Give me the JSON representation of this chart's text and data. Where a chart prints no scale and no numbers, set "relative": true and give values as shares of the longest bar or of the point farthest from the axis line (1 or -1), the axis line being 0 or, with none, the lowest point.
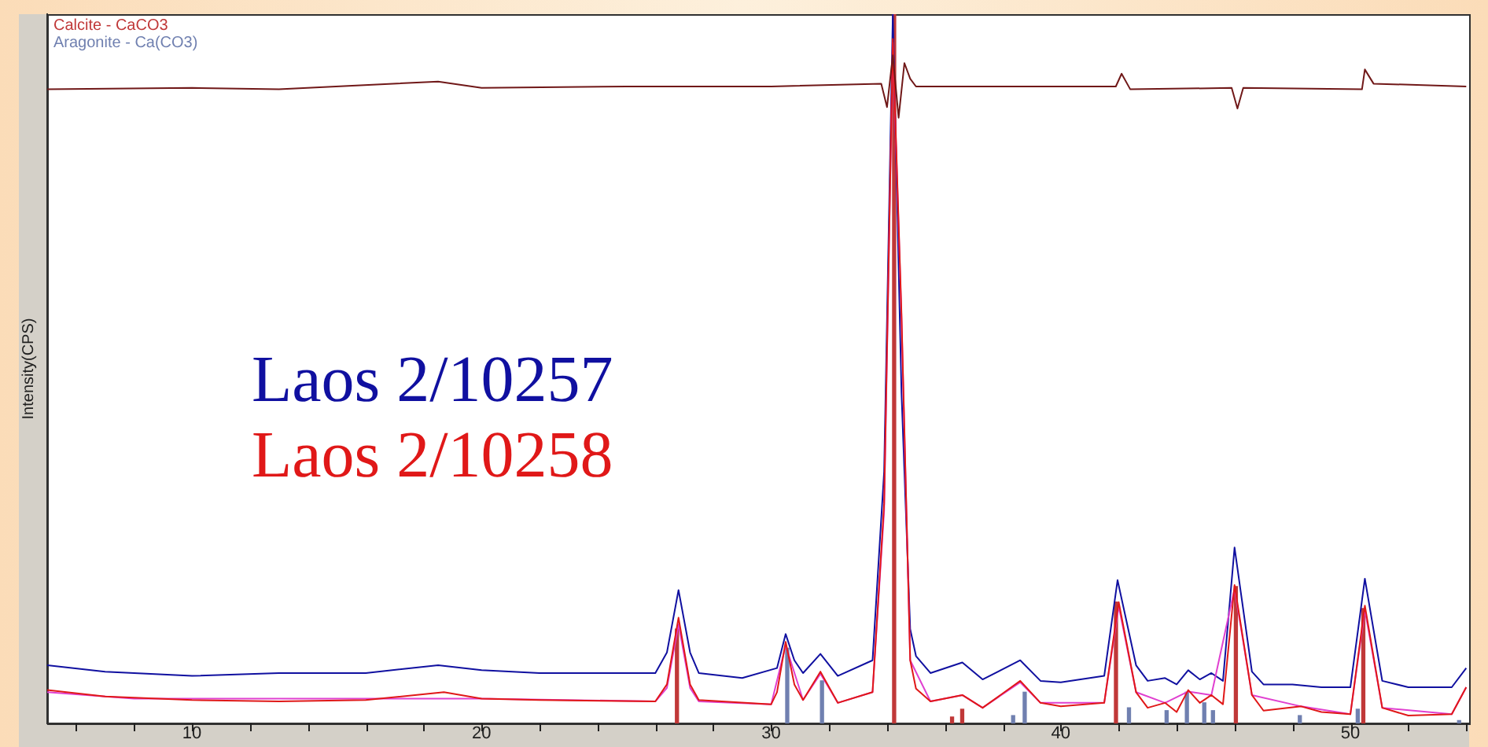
{
  "chart_data": {
    "type": "line",
    "relative": true,
    "ylabel": "Intensity(CPS)",
    "legend": "top left",
    "grid": false,
    "marker": "none",
    "line_style": "solid",
    "xlim": [
      5,
      54.1
    ],
    "xticks": [
      {
        "value": 6,
        "label": null
      },
      {
        "value": 8,
        "label": null
      },
      10,
      {
        "value": 12,
        "label": null
      },
      {
        "value": 14,
        "label": null
      },
      {
        "value": 16,
        "label": null
      },
      {
        "value": 18,
        "label": null
      },
      20,
      {
        "value": 22,
        "label": null
      },
      {
        "value": 24,
        "label": null
      },
      {
        "value": 26,
        "label": null
      },
      {
        "value": 28,
        "label": null
      },
      30,
      {
        "value": 32,
        "label": null
      },
      {
        "value": 34,
        "label": null
      },
      {
        "value": 36,
        "label": null
      },
      {
        "value": 38,
        "label": null
      },
      40,
      {
        "value": 42,
        "label": null
      },
      {
        "value": 44,
        "label": null
      },
      {
        "value": 46,
        "label": null
      },
      {
        "value": 48,
        "label": null
      },
      50,
      {
        "value": 52,
        "label": null
      },
      {
        "value": 54,
        "label": null
      }
    ],
    "series": [
      {
        "name": "Calcite - CaCO3",
        "type": "bar",
        "color": "#c03838",
        "x": [
          26.8,
          34.3,
          36.3,
          36.65,
          41.96,
          46.1,
          50.5
        ],
        "values": [
          0.133,
          1,
          0.009,
          0.02,
          0.171,
          0.193,
          0.162
        ]
      },
      {
        "name": "Aragonite - Ca(CO3)",
        "type": "bar",
        "color": "#7080b0",
        "x": [
          30.5,
          31.7,
          38.3,
          38.7,
          42.3,
          43.6,
          44.3,
          44.9,
          45.2,
          48.2,
          50.2,
          53.7
        ],
        "values": [
          0.106,
          0.06,
          0.011,
          0.044,
          0.022,
          0.018,
          0.044,
          0.029,
          0.018,
          0.011,
          0.02,
          0.004
        ]
      },
      {
        "name": "Laos 2/10257",
        "color": "#1010a0",
        "x": [
          5,
          7,
          10,
          13,
          16,
          18.5,
          20,
          22,
          24,
          26,
          26.4,
          26.8,
          27.2,
          27.5,
          29,
          30.2,
          30.5,
          30.8,
          31.1,
          31.7,
          32.3,
          33.5,
          33.9,
          34.2,
          34.5,
          34.8,
          35,
          35.5,
          36.6,
          37.3,
          38.6,
          39.3,
          40,
          41.5,
          41.96,
          42.6,
          43,
          43.6,
          44,
          44.4,
          44.8,
          45.2,
          45.6,
          46,
          46.6,
          47,
          48,
          49,
          50,
          50.5,
          51.1,
          52,
          53.5,
          54
        ],
        "values": [
          0.082,
          0.073,
          0.067,
          0.071,
          0.071,
          0.082,
          0.075,
          0.071,
          0.071,
          0.071,
          0.1,
          0.188,
          0.1,
          0.071,
          0.064,
          0.078,
          0.126,
          0.089,
          0.071,
          0.098,
          0.067,
          0.089,
          0.355,
          1,
          0.466,
          0.133,
          0.095,
          0.071,
          0.086,
          0.062,
          0.089,
          0.06,
          0.058,
          0.067,
          0.202,
          0.082,
          0.06,
          0.064,
          0.055,
          0.075,
          0.062,
          0.071,
          0.06,
          0.248,
          0.073,
          0.055,
          0.055,
          0.051,
          0.051,
          0.204,
          0.06,
          0.051,
          0.051,
          0.078
        ]
      },
      {
        "color": "#e040d0",
        "x": [
          5,
          8,
          15,
          20,
          26,
          26.4,
          26.8,
          27.2,
          27.5,
          30,
          30.5,
          31.1,
          31.7,
          32.3,
          33.5,
          33.9,
          34.2,
          34.5,
          34.8,
          35.5,
          36.6,
          37.3,
          38.6,
          39.3,
          41.5,
          42,
          42.6,
          43.6,
          44.4,
          45.2,
          46,
          46.6,
          48.3,
          50,
          50.5,
          51.1,
          53.5,
          54
        ],
        "values": [
          0.044,
          0.035,
          0.035,
          0.035,
          0.031,
          0.05,
          0.14,
          0.05,
          0.031,
          0.027,
          0.11,
          0.033,
          0.07,
          0.029,
          0.044,
          0.3,
          0.96,
          0.57,
          0.089,
          0.031,
          0.04,
          0.022,
          0.058,
          0.029,
          0.029,
          0.165,
          0.044,
          0.029,
          0.045,
          0.04,
          0.19,
          0.04,
          0.024,
          0.013,
          0.16,
          0.022,
          0.013,
          0.051
        ]
      },
      {
        "name": "Laos 2/10258",
        "color": "#e01818",
        "x": [
          5,
          7,
          10,
          13,
          16,
          18.7,
          20,
          22,
          26,
          26.4,
          26.8,
          27.2,
          27.5,
          30,
          30.2,
          30.5,
          30.8,
          31.1,
          31.7,
          32.3,
          33.5,
          33.9,
          34.2,
          34.5,
          34.8,
          35,
          35.5,
          36.6,
          37.3,
          38.6,
          39.3,
          40,
          41.5,
          42,
          42.6,
          43,
          43.6,
          44,
          44.4,
          44.8,
          45.2,
          45.6,
          46,
          46.6,
          47,
          48.3,
          49,
          50,
          50.5,
          51.1,
          52,
          53.5,
          54
        ],
        "values": [
          0.047,
          0.038,
          0.033,
          0.031,
          0.033,
          0.044,
          0.035,
          0.033,
          0.031,
          0.055,
          0.149,
          0.055,
          0.033,
          0.027,
          0.044,
          0.115,
          0.055,
          0.033,
          0.073,
          0.029,
          0.044,
          0.31,
          0.965,
          0.576,
          0.089,
          0.049,
          0.031,
          0.04,
          0.022,
          0.06,
          0.029,
          0.024,
          0.029,
          0.171,
          0.044,
          0.022,
          0.029,
          0.016,
          0.047,
          0.029,
          0.04,
          0.027,
          0.195,
          0.04,
          0.018,
          0.024,
          0.016,
          0.013,
          0.166,
          0.022,
          0.011,
          0.013,
          0.051
        ]
      },
      {
        "color": "#701818",
        "x": [
          5,
          10,
          13,
          18.5,
          20,
          25,
          30,
          33.8,
          34,
          34.2,
          34.4,
          34.6,
          34.8,
          35,
          38,
          41.9,
          42.1,
          42.4,
          45.9,
          46.1,
          46.3,
          50.4,
          50.5,
          50.8,
          54
        ],
        "values": [
          0.894,
          0.896,
          0.894,
          0.905,
          0.896,
          0.898,
          0.898,
          0.902,
          0.869,
          0.942,
          0.854,
          0.931,
          0.909,
          0.898,
          0.898,
          0.898,
          0.916,
          0.894,
          0.896,
          0.867,
          0.896,
          0.894,
          0.922,
          0.902,
          0.898
        ]
      }
    ]
  }
}
